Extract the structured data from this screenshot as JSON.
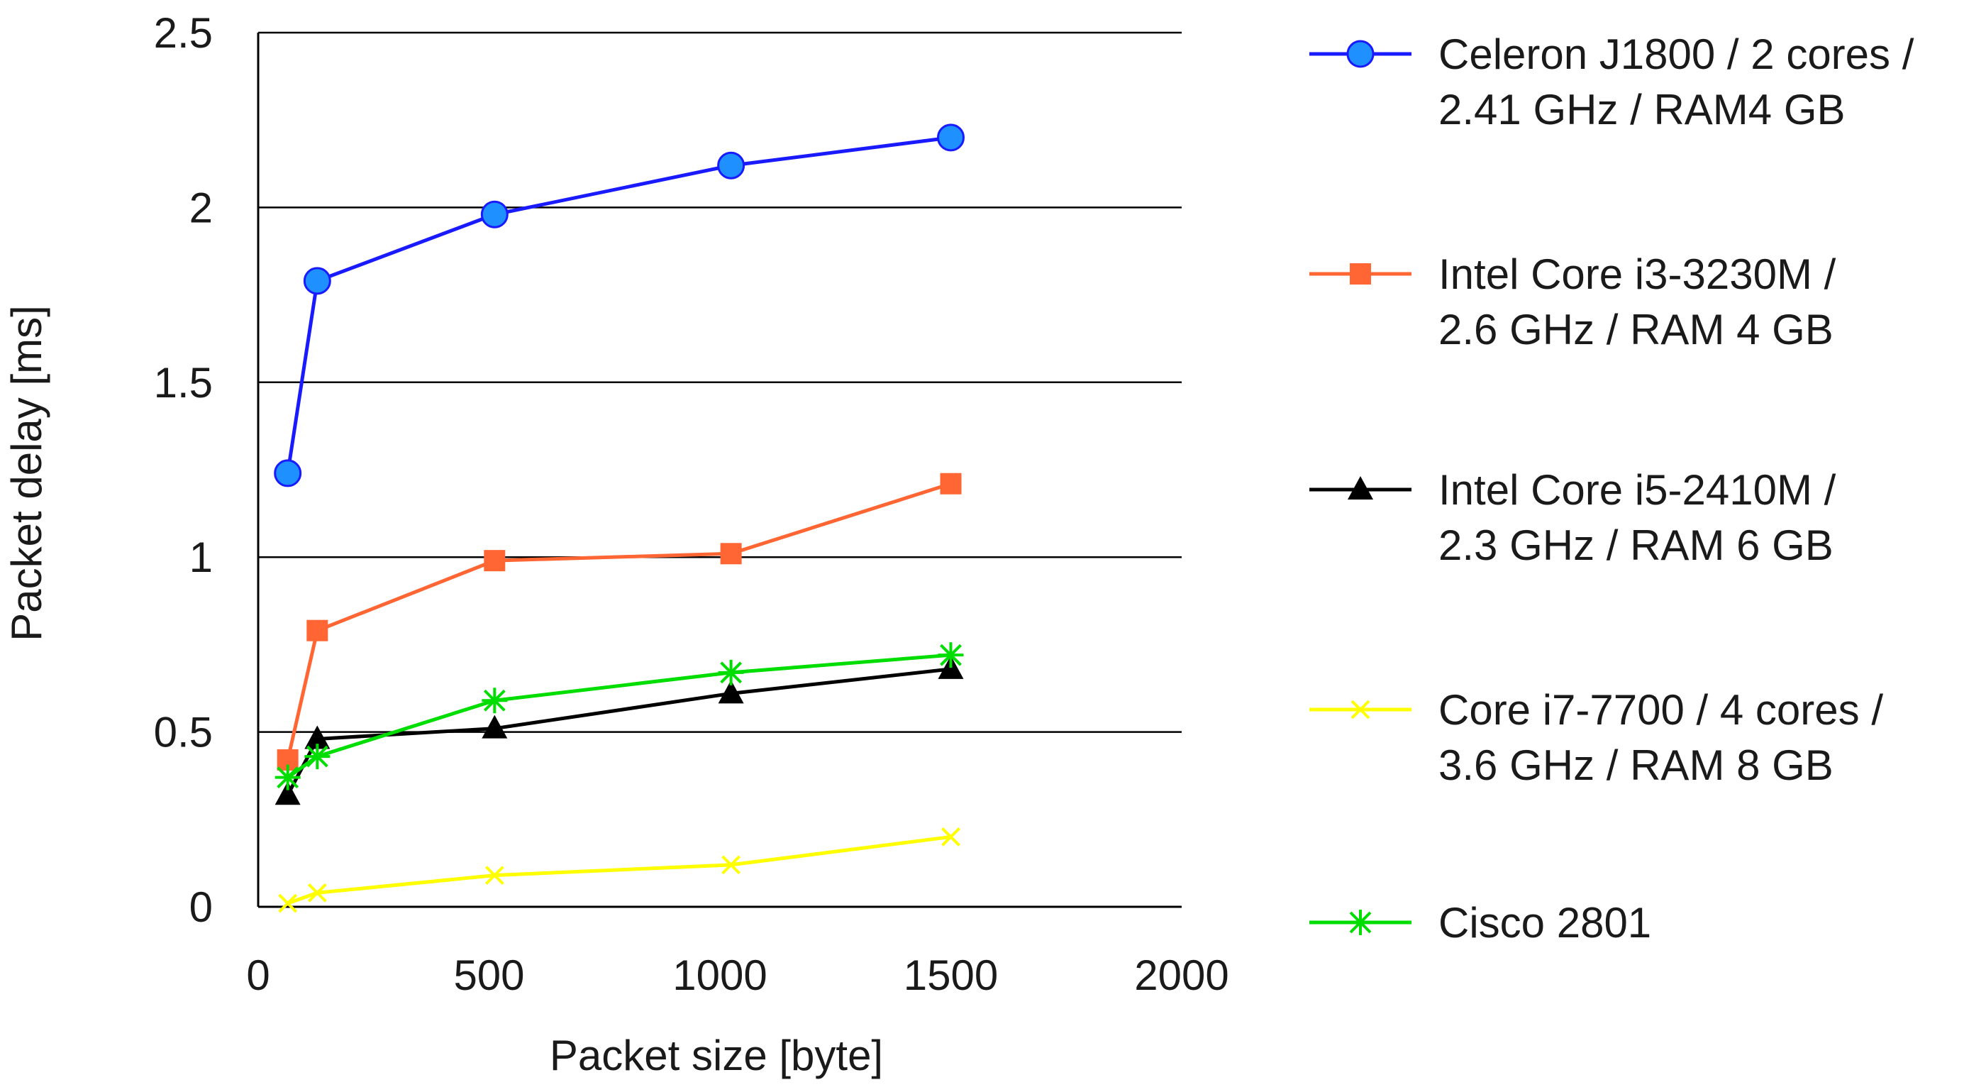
{
  "chart_data": {
    "type": "line",
    "title": "",
    "xlabel": "Packet size [byte]",
    "ylabel": "Packet delay [ms]",
    "xlim": [
      0,
      2000
    ],
    "ylim": [
      0,
      2.5
    ],
    "xticks": [
      0,
      500,
      1000,
      1500,
      2000
    ],
    "yticks": [
      0,
      0.5,
      1,
      1.5,
      2,
      2.5
    ],
    "xtick_labels": [
      "0",
      "500",
      "1000",
      "1500",
      "2000"
    ],
    "ytick_labels": [
      "0",
      "0.5",
      "1",
      "1.5",
      "2",
      "2.5"
    ],
    "grid": "horizontal",
    "legend_position": "right",
    "x": [
      64,
      128,
      512,
      1024,
      1500
    ],
    "series": [
      {
        "name": "Celeron J1800 / 2 cores / 2.41 GHz / RAM4 GB",
        "legend_lines": [
          "Celeron J1800 / 2 cores /",
          "2.41 GHz / RAM4 GB"
        ],
        "values": [
          1.24,
          1.79,
          1.98,
          2.12,
          2.2
        ],
        "color": "#1a1aff",
        "marker_fill": "#1e90ff",
        "marker": "circle"
      },
      {
        "name": "Intel Core i3-3230M / 2.6 GHz / RAM 4 GB",
        "legend_lines": [
          "Intel Core i3-3230M /",
          "2.6 GHz / RAM 4 GB"
        ],
        "values": [
          0.42,
          0.79,
          0.99,
          1.01,
          1.21
        ],
        "color": "#ff6633",
        "marker_fill": "#ff6633",
        "marker": "square"
      },
      {
        "name": "Intel Core i5-2410M / 2.3 GHz / RAM 6 GB",
        "legend_lines": [
          "Intel Core i5-2410M /",
          "2.3 GHz / RAM 6 GB"
        ],
        "values": [
          0.32,
          0.48,
          0.51,
          0.61,
          0.68
        ],
        "color": "#000000",
        "marker_fill": "#000000",
        "marker": "triangle"
      },
      {
        "name": "Core i7-7700 / 4 cores / 3.6 GHz / RAM 8 GB",
        "legend_lines": [
          "Core i7-7700 / 4 cores /",
          "3.6 GHz / RAM 8 GB"
        ],
        "values": [
          0.01,
          0.04,
          0.09,
          0.12,
          0.2
        ],
        "color": "#ffff00",
        "marker_fill": "#ffff00",
        "marker": "x"
      },
      {
        "name": "Cisco 2801",
        "legend_lines": [
          "Cisco 2801"
        ],
        "values": [
          0.37,
          0.43,
          0.59,
          0.67,
          0.72
        ],
        "color": "#00dd00",
        "marker_fill": "#00dd00",
        "marker": "star"
      }
    ]
  }
}
